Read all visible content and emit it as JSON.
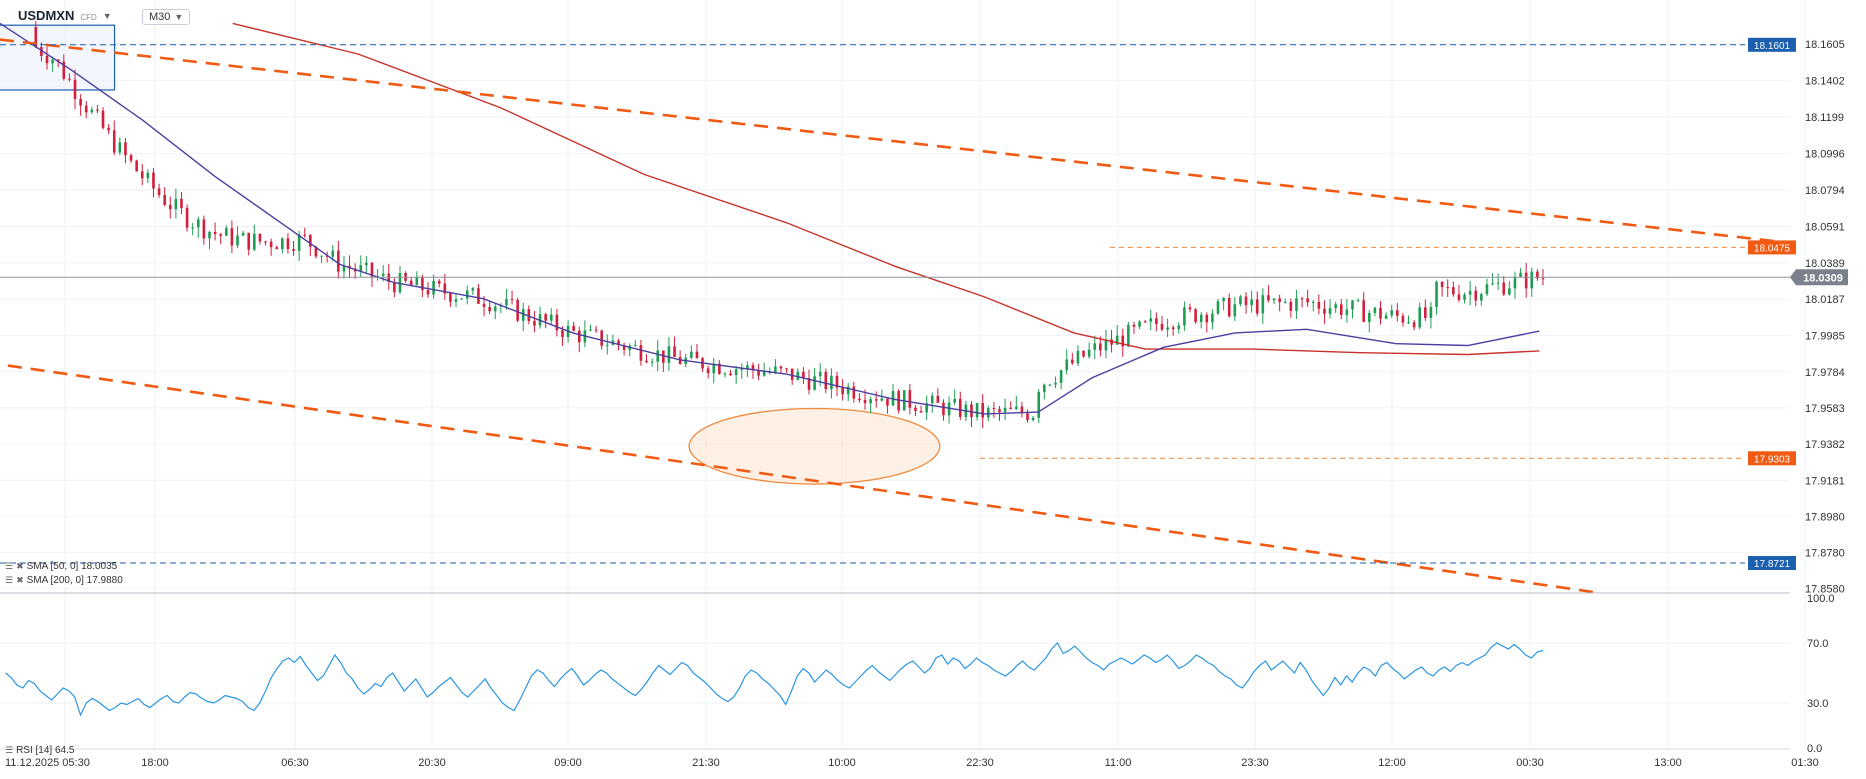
{
  "header": {
    "symbol": "USDMXN",
    "badge": "CFD",
    "timeframe": "M30"
  },
  "indicators": {
    "sma50_label": "SMA [50, 0] 18.0035",
    "sma200_label": "SMA [200, 0] 17.9880",
    "rsi_label": "RSI [14] 64.5"
  },
  "colors": {
    "bull": "#1f9d55",
    "bear": "#d21f3c",
    "sma50": "#4b3fa0",
    "sma200": "#c8322c",
    "trend": "#f05a12",
    "level_blue": "#1b5fae",
    "rsi": "#2b96e3"
  },
  "chart_data": [
    {
      "type": "candlestick",
      "price_axis": {
        "ylim": [
          17.856,
          18.175
        ],
        "ticks": [
          "18.1605",
          "18.1402",
          "18.1199",
          "18.0996",
          "18.0794",
          "18.0591",
          "18.0389",
          "18.0187",
          "17.9985",
          "17.9784",
          "17.9583",
          "17.9382",
          "17.9181",
          "17.8980",
          "17.8780",
          "17.8580"
        ]
      },
      "time_axis": {
        "labels": [
          "11.12.2025  05:30",
          "18:00",
          "06:30",
          "20:30",
          "09:00",
          "21:30",
          "10:00",
          "22:30",
          "11:00",
          "23:30",
          "12:00",
          "00:30",
          "13:00",
          "01:30"
        ]
      },
      "last_price": "18.0309",
      "levels": [
        {
          "label": "18.1601",
          "value": 18.1601,
          "style": "blue"
        },
        {
          "label": "18.0475",
          "value": 18.0475,
          "style": "orange"
        },
        {
          "label": "17.9303",
          "value": 17.9303,
          "style": "orange"
        },
        {
          "label": "17.8721",
          "value": 17.8721,
          "style": "blue"
        }
      ],
      "trendlines": [
        {
          "from": [
            0.0,
            18.163
          ],
          "to": [
            1.0,
            18.05
          ]
        },
        {
          "from": [
            -0.25,
            18.018
          ],
          "to": [
            0.89,
            17.856
          ]
        }
      ],
      "zones": [
        {
          "type": "rect",
          "x": [
            -0.01,
            0.064
          ],
          "y": [
            18.171,
            18.135
          ]
        },
        {
          "type": "ellipse",
          "cx": 0.455,
          "cy": 17.937,
          "rx": 0.07,
          "ry": 0.021
        }
      ],
      "sma50": [
        [
          0.0,
          18.172
        ],
        [
          0.04,
          18.146
        ],
        [
          0.08,
          18.118
        ],
        [
          0.12,
          18.087
        ],
        [
          0.16,
          18.059
        ],
        [
          0.19,
          18.038
        ],
        [
          0.22,
          18.028
        ],
        [
          0.27,
          18.019
        ],
        [
          0.32,
          18.0
        ],
        [
          0.38,
          17.985
        ],
        [
          0.44,
          17.977
        ],
        [
          0.5,
          17.963
        ],
        [
          0.55,
          17.955
        ],
        [
          0.58,
          17.956
        ],
        [
          0.61,
          17.975
        ],
        [
          0.65,
          17.992
        ],
        [
          0.69,
          18.0
        ],
        [
          0.73,
          18.002
        ],
        [
          0.78,
          17.994
        ],
        [
          0.82,
          17.993
        ],
        [
          0.86,
          18.001
        ]
      ],
      "sma200": [
        [
          0.13,
          18.172
        ],
        [
          0.2,
          18.155
        ],
        [
          0.28,
          18.125
        ],
        [
          0.36,
          18.088
        ],
        [
          0.44,
          18.061
        ],
        [
          0.5,
          18.037
        ],
        [
          0.55,
          18.02
        ],
        [
          0.6,
          18.0
        ],
        [
          0.64,
          17.991
        ],
        [
          0.7,
          17.991
        ],
        [
          0.76,
          17.989
        ],
        [
          0.82,
          17.988
        ],
        [
          0.86,
          17.99
        ]
      ]
    },
    {
      "type": "line",
      "name": "RSI",
      "ylim": [
        0,
        100
      ],
      "ticks": [
        "100.0",
        "70.0",
        "30.0",
        "0.0"
      ],
      "values": [
        50,
        47,
        42,
        40,
        45,
        43,
        38,
        35,
        32,
        36,
        40,
        38,
        34,
        22,
        30,
        33,
        31,
        28,
        25,
        27,
        30,
        29,
        31,
        33,
        29,
        27,
        30,
        33,
        35,
        31,
        30,
        34,
        37,
        36,
        33,
        31,
        30,
        32,
        35,
        34,
        33,
        31,
        27,
        25,
        30,
        38,
        47,
        53,
        58,
        60,
        57,
        61,
        55,
        50,
        45,
        48,
        55,
        62,
        57,
        50,
        46,
        40,
        36,
        39,
        43,
        41,
        47,
        50,
        44,
        38,
        42,
        46,
        40,
        34,
        37,
        41,
        44,
        47,
        42,
        37,
        34,
        38,
        42,
        46,
        40,
        35,
        30,
        27,
        25,
        32,
        40,
        48,
        52,
        50,
        45,
        41,
        46,
        50,
        53,
        48,
        42,
        45,
        49,
        52,
        50,
        46,
        43,
        40,
        37,
        35,
        39,
        44,
        50,
        55,
        52,
        49,
        53,
        57,
        55,
        50,
        47,
        44,
        40,
        36,
        33,
        31,
        34,
        40,
        48,
        52,
        50,
        46,
        43,
        39,
        35,
        29,
        38,
        48,
        53,
        50,
        44,
        48,
        52,
        49,
        45,
        42,
        40,
        44,
        48,
        52,
        55,
        51,
        48,
        45,
        49,
        53,
        56,
        58,
        54,
        50,
        53,
        60,
        62,
        56,
        60,
        58,
        53,
        56,
        60,
        57,
        55,
        52,
        50,
        48,
        51,
        55,
        58,
        54,
        52,
        56,
        60,
        66,
        70,
        63,
        65,
        68,
        64,
        60,
        57,
        55,
        52,
        56,
        58,
        60,
        58,
        56,
        59,
        62,
        60,
        57,
        59,
        62,
        58,
        53,
        55,
        58,
        62,
        60,
        57,
        55,
        51,
        48,
        46,
        42,
        40,
        45,
        51,
        55,
        58,
        52,
        55,
        58,
        54,
        50,
        57,
        52,
        45,
        40,
        35,
        40,
        47,
        42,
        48,
        44,
        50,
        54,
        52,
        48,
        55,
        57,
        53,
        50,
        46,
        49,
        52,
        54,
        50,
        48,
        52,
        54,
        51,
        55,
        57,
        55,
        58,
        60,
        62,
        67,
        70,
        68,
        66,
        69,
        66,
        62,
        60,
        64,
        65
      ],
      "last_value": "64.5"
    }
  ]
}
